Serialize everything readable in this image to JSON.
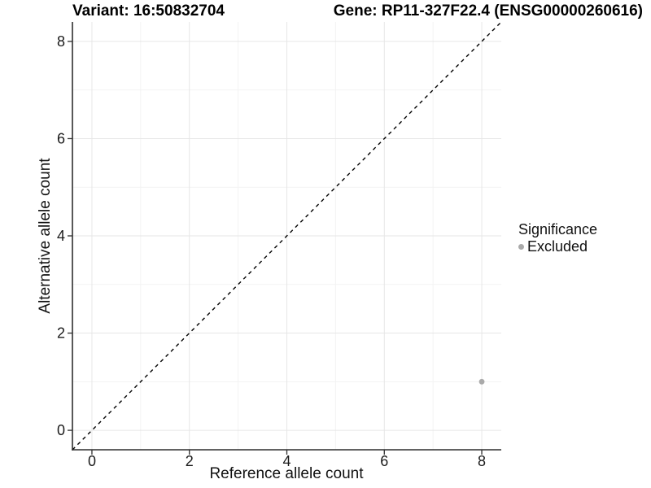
{
  "chart_data": {
    "type": "scatter",
    "title_left": "Variant: 16:50832704",
    "title_right": "Gene: RP11-327F22.4 (ENSG00000260616)",
    "xlabel": "Reference allele count",
    "ylabel": "Alternative allele count",
    "xlim": [
      -0.4,
      8.4
    ],
    "ylim": [
      -0.4,
      8.4
    ],
    "x_ticks": [
      0,
      2,
      4,
      6,
      8
    ],
    "y_ticks": [
      0,
      2,
      4,
      6,
      8
    ],
    "x_minor_ticks": [
      1,
      3,
      5,
      7
    ],
    "y_minor_ticks": [
      1,
      3,
      5,
      7
    ],
    "grid": true,
    "legend": {
      "title": "Significance",
      "position": "right",
      "items": [
        {
          "label": "Excluded",
          "color": "#aaaaaa"
        }
      ]
    },
    "series": [
      {
        "name": "Excluded",
        "color": "#aaaaaa",
        "points": [
          {
            "x": 8,
            "y": 1
          }
        ]
      }
    ],
    "reference_line": {
      "type": "identity y=x",
      "x1": -0.4,
      "y1": -0.4,
      "x2": 8.4,
      "y2": 8.4,
      "style": "dashed",
      "color": "#000000"
    },
    "colors": {
      "background": "#ffffff",
      "grid_major": "#e6e6e6",
      "grid_minor": "#f3f3f3",
      "axis_line": "#2e2e2e",
      "tick_label": "#1a1a1a",
      "point": "#aaaaaa"
    }
  }
}
